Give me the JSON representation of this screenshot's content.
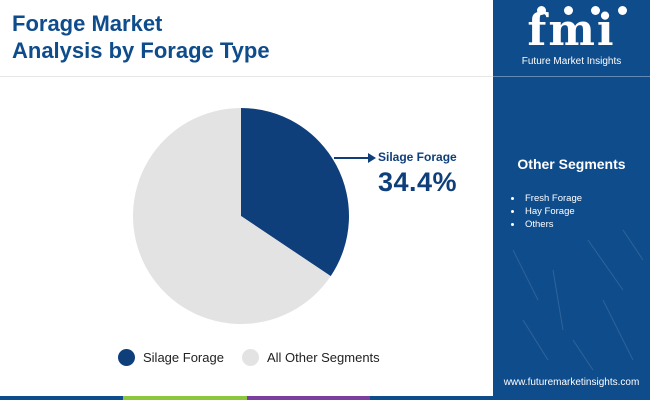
{
  "title": {
    "line1": "Forage Market",
    "line2": "Analysis by Forage Type"
  },
  "chart_data": {
    "type": "pie",
    "title": "Forage Market Analysis by Forage Type",
    "slices": [
      {
        "label": "Silage Forage",
        "value": 34.4,
        "color": "#0f3f7a"
      },
      {
        "label": "All Other Segments",
        "value": 65.6,
        "color": "#e3e3e3"
      }
    ],
    "callout": {
      "label": "Silage Forage",
      "value_text": "34.4%"
    },
    "legend": {
      "position": "bottom",
      "items": [
        {
          "label": "Silage Forage",
          "color": "#0f3f7a"
        },
        {
          "label": "All Other Segments",
          "color": "#e3e3e3"
        }
      ]
    }
  },
  "sidebar": {
    "logo_text": "fmi",
    "logo_subtitle": "Future Market Insights",
    "segments_title": "Other Segments",
    "segments": [
      "Fresh Forage",
      "Hay Forage",
      "Others"
    ],
    "website": "www.futuremarketinsights.com",
    "background_color": "#0f4c8c"
  },
  "bottom_bar_colors": [
    "#0f4c8c",
    "#8cc63f",
    "#7b3fa0",
    "#0f4c8c"
  ]
}
